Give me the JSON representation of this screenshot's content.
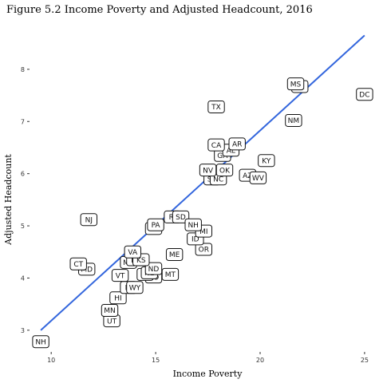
{
  "chart_data": {
    "type": "scatter",
    "title": "Figure 5.2 Income Poverty and Adjusted Headcount, 2016",
    "xlabel": "Income Poverty",
    "ylabel": "Adjusted Headcount",
    "xlim": [
      9.0,
      25.5
    ],
    "ylim": [
      2.6,
      8.9
    ],
    "xticks": [
      10,
      15,
      20,
      25
    ],
    "yticks": [
      3,
      4,
      5,
      6,
      7,
      8
    ],
    "grid": false,
    "legend": "none",
    "colors": {
      "fit_line": "#3366dd",
      "label_border": "#111111",
      "label_fill": "#ffffff"
    },
    "fit_line": {
      "x": [
        9.5,
        25.0
      ],
      "y": [
        3.0,
        8.65
      ]
    },
    "points": [
      {
        "label": "NH",
        "x": 9.5,
        "y": 2.78
      },
      {
        "label": "UT",
        "x": 12.9,
        "y": 3.18
      },
      {
        "label": "MN",
        "x": 12.8,
        "y": 3.38
      },
      {
        "label": "HI",
        "x": 13.2,
        "y": 3.62
      },
      {
        "label": "IA",
        "x": 13.7,
        "y": 3.82
      },
      {
        "label": "WY",
        "x": 14.0,
        "y": 3.82
      },
      {
        "label": "CO",
        "x": 14.9,
        "y": 4.02
      },
      {
        "label": "MT",
        "x": 15.7,
        "y": 4.07
      },
      {
        "label": "WI",
        "x": 14.5,
        "y": 4.07
      },
      {
        "label": "VT",
        "x": 13.3,
        "y": 4.05
      },
      {
        "label": "NE",
        "x": 14.7,
        "y": 4.1
      },
      {
        "label": "ND",
        "x": 14.9,
        "y": 4.18
      },
      {
        "label": "MD",
        "x": 11.7,
        "y": 4.17
      },
      {
        "label": "CT",
        "x": 11.3,
        "y": 4.27
      },
      {
        "label": "MA",
        "x": 13.7,
        "y": 4.3
      },
      {
        "label": "IN",
        "x": 14.0,
        "y": 4.35
      },
      {
        "label": "KS",
        "x": 14.3,
        "y": 4.35
      },
      {
        "label": "VA",
        "x": 13.9,
        "y": 4.5
      },
      {
        "label": "ME",
        "x": 15.9,
        "y": 4.45
      },
      {
        "label": "OR",
        "x": 17.3,
        "y": 4.55
      },
      {
        "label": "ID",
        "x": 16.9,
        "y": 4.75
      },
      {
        "label": "MI",
        "x": 17.3,
        "y": 4.9
      },
      {
        "label": "AL",
        "x": 14.9,
        "y": 4.95
      },
      {
        "label": "PA",
        "x": 15.0,
        "y": 5.02
      },
      {
        "label": "NJ",
        "x": 11.8,
        "y": 5.12
      },
      {
        "label": "RI",
        "x": 15.8,
        "y": 5.17
      },
      {
        "label": "SD",
        "x": 16.2,
        "y": 5.17
      },
      {
        "label": "NH",
        "x": 16.8,
        "y": 5.02
      },
      {
        "label": "SC",
        "x": 17.7,
        "y": 5.9
      },
      {
        "label": "NC",
        "x": 18.0,
        "y": 5.9
      },
      {
        "label": "NV",
        "x": 17.5,
        "y": 6.07
      },
      {
        "label": "OK",
        "x": 18.3,
        "y": 6.07
      },
      {
        "label": "AZ",
        "x": 19.4,
        "y": 5.97
      },
      {
        "label": "WV",
        "x": 19.9,
        "y": 5.92
      },
      {
        "label": "KY",
        "x": 20.3,
        "y": 6.25
      },
      {
        "label": "GA",
        "x": 18.2,
        "y": 6.35
      },
      {
        "label": "AL",
        "x": 18.6,
        "y": 6.45
      },
      {
        "label": "CA",
        "x": 17.9,
        "y": 6.55
      },
      {
        "label": "AR",
        "x": 18.9,
        "y": 6.57
      },
      {
        "label": "TX",
        "x": 17.9,
        "y": 7.28
      },
      {
        "label": "NM",
        "x": 21.6,
        "y": 7.02
      },
      {
        "label": "LA",
        "x": 21.9,
        "y": 7.67
      },
      {
        "label": "MS",
        "x": 21.7,
        "y": 7.72
      },
      {
        "label": "DC",
        "x": 25.0,
        "y": 7.52
      }
    ]
  }
}
